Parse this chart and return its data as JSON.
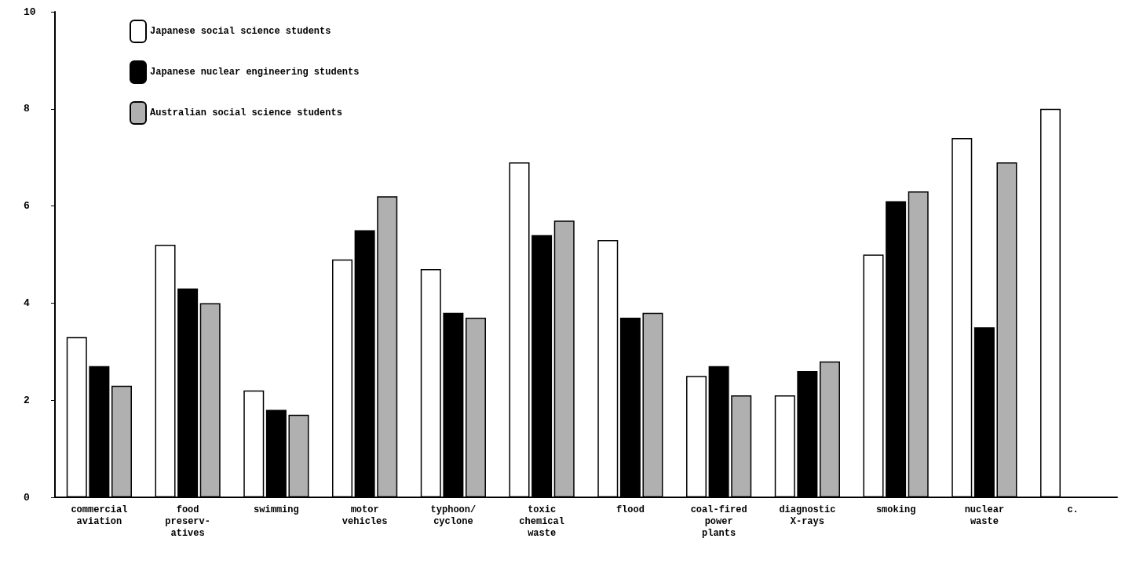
{
  "chart_data": {
    "type": "bar",
    "categories": [
      "commercial\naviation",
      "food\npreserv-\natives",
      "swimming",
      "motor\nvehicles",
      "typhoon/\ncyclone",
      "toxic\nchemical\nwaste",
      "flood",
      "coal-fired\npower\nplants",
      "diagnostic\nX-rays",
      "smoking",
      "nuclear\nwaste",
      "c."
    ],
    "series": [
      {
        "name": "Japanese social science students",
        "color": "#ffffff",
        "values": [
          3.3,
          5.2,
          2.2,
          4.9,
          4.7,
          6.9,
          5.3,
          2.5,
          2.1,
          5.0,
          7.4,
          8.0
        ]
      },
      {
        "name": "Japanese nuclear engineering students",
        "color": "#000000",
        "values": [
          2.7,
          4.3,
          1.8,
          5.5,
          3.8,
          5.4,
          3.7,
          2.7,
          2.6,
          6.1,
          3.5,
          null
        ]
      },
      {
        "name": "Australian social science students",
        "color": "#b0b0b0",
        "values": [
          2.3,
          4.0,
          1.7,
          6.2,
          3.7,
          5.7,
          3.8,
          2.1,
          2.8,
          6.3,
          6.9,
          null
        ]
      }
    ],
    "ylim": [
      0,
      10
    ],
    "yticks": [
      0,
      2,
      4,
      6,
      8,
      10
    ],
    "grid": false,
    "legend": "top left"
  }
}
